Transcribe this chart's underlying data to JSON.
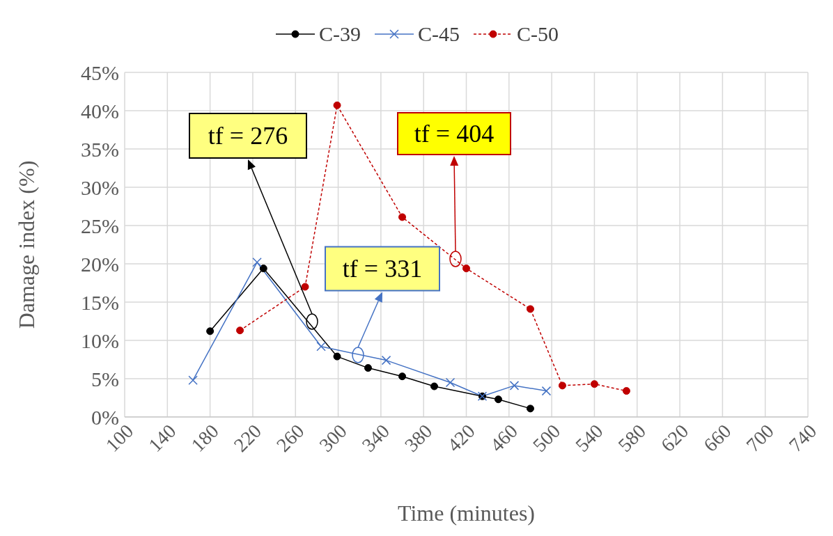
{
  "chart_data": {
    "type": "line",
    "xlabel": "Time (minutes)",
    "ylabel": "Damage index (%)",
    "xlim": [
      100,
      740
    ],
    "xticks": [
      100,
      140,
      180,
      220,
      260,
      300,
      340,
      380,
      420,
      460,
      500,
      540,
      580,
      620,
      660,
      700,
      740
    ],
    "ylim": [
      0,
      45
    ],
    "yticks": [
      {
        "value": 0,
        "label": "0%"
      },
      {
        "value": 5,
        "label": "5%"
      },
      {
        "value": 10,
        "label": "10%"
      },
      {
        "value": 15,
        "label": "15%"
      },
      {
        "value": 20,
        "label": "20%"
      },
      {
        "value": 25,
        "label": "25%"
      },
      {
        "value": 30,
        "label": "30%"
      },
      {
        "value": 35,
        "label": "35%"
      },
      {
        "value": 40,
        "label": "40%"
      },
      {
        "value": 45,
        "label": "45%"
      }
    ],
    "grid": true,
    "legend": "top",
    "series": [
      {
        "name": "C-39",
        "color": "#000000",
        "marker": "circle",
        "line_style": "solid",
        "x": [
          180,
          230,
          299,
          328,
          360,
          390,
          435,
          450,
          480
        ],
        "values": [
          11.2,
          19.4,
          7.9,
          6.4,
          5.3,
          4.0,
          2.7,
          2.3,
          1.1
        ]
      },
      {
        "name": "C-45",
        "color": "#4472c4",
        "marker": "cross",
        "line_style": "solid",
        "x": [
          164,
          224,
          284,
          345,
          405,
          435,
          465,
          495
        ],
        "values": [
          4.8,
          20.2,
          9.2,
          7.4,
          4.5,
          2.7,
          4.1,
          3.4
        ]
      },
      {
        "name": "C-50",
        "color": "#c00000",
        "marker": "circle",
        "line_style": "dashed",
        "x": [
          208,
          269,
          299,
          360,
          420,
          480,
          510,
          540,
          570
        ],
        "values": [
          11.3,
          17.0,
          40.7,
          26.1,
          19.4,
          14.1,
          4.1,
          4.3,
          3.4
        ]
      }
    ],
    "annotations": [
      "tf = 276",
      "tf = 331",
      "tf = 404"
    ]
  }
}
